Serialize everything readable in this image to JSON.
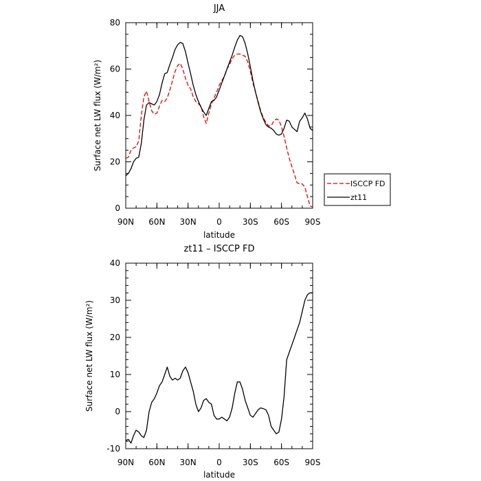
{
  "chart_data": [
    {
      "type": "line",
      "title": "JJA",
      "xlabel": "latitude",
      "ylabel": "Surface net LW flux (W/m²)",
      "xlim": [
        90,
        -90
      ],
      "ylim": [
        0,
        80
      ],
      "xticks": [
        {
          "value": 90,
          "label": "90N"
        },
        {
          "value": 60,
          "label": "60N"
        },
        {
          "value": 30,
          "label": "30N"
        },
        {
          "value": 0,
          "label": "0"
        },
        {
          "value": -30,
          "label": "30S"
        },
        {
          "value": -60,
          "label": "60S"
        },
        {
          "value": -90,
          "label": "90S"
        }
      ],
      "yticks": [
        0,
        20,
        40,
        60,
        80
      ],
      "legend": "outside-right",
      "series": [
        {
          "name": "ISCCP FD",
          "color": "#e00000",
          "dash": "dashed",
          "x": [
            90,
            87.5,
            85,
            82.5,
            80,
            77.5,
            75,
            72.5,
            70,
            67.5,
            65,
            62.5,
            60,
            57.5,
            55,
            52.5,
            50,
            47.5,
            45,
            42.5,
            40,
            37.5,
            35,
            32.5,
            30,
            27.5,
            25,
            22.5,
            20,
            17.5,
            15,
            12.5,
            10,
            7.5,
            5,
            2.5,
            0,
            -2.5,
            -5,
            -7.5,
            -10,
            -12.5,
            -15,
            -17.5,
            -20,
            -22.5,
            -25,
            -27.5,
            -30,
            -32.5,
            -35,
            -37.5,
            -40,
            -42.5,
            -45,
            -47.5,
            -50,
            -52.5,
            -55,
            -57.5,
            -60,
            -62.5,
            -65,
            -67.5,
            -70,
            -72.5,
            -75,
            -77.5,
            -80,
            -82.5,
            -85,
            -87.5,
            -90
          ],
          "y": [
            21.5,
            22.0,
            25.0,
            26.0,
            26.5,
            29.0,
            40.0,
            48.0,
            50.5,
            46.0,
            42.0,
            40.5,
            41.0,
            44.0,
            46.5,
            46.0,
            47.5,
            51.0,
            55.0,
            59.0,
            61.5,
            62.5,
            60.0,
            56.0,
            53.0,
            51.5,
            48.0,
            46.0,
            45.0,
            44.0,
            39.5,
            36.5,
            41.0,
            45.0,
            47.5,
            50.0,
            53.0,
            55.0,
            57.0,
            60.0,
            62.0,
            64.5,
            66.0,
            66.5,
            66.5,
            66.0,
            65.5,
            63.0,
            59.0,
            54.0,
            50.0,
            46.0,
            42.0,
            39.0,
            37.0,
            35.5,
            35.5,
            37.5,
            38.5,
            38.0,
            35.0,
            31.0,
            26.0,
            21.5,
            18.0,
            14.5,
            11.0,
            10.5,
            10.5,
            9.0,
            5.0,
            1.0,
            0.5
          ]
        },
        {
          "name": "zt11",
          "color": "#000000",
          "dash": "solid",
          "x": [
            90,
            87.5,
            85,
            82.5,
            80,
            77.5,
            75,
            72.5,
            70,
            67.5,
            65,
            62.5,
            60,
            57.5,
            55,
            52.5,
            50,
            47.5,
            45,
            42.5,
            40,
            37.5,
            35,
            32.5,
            30,
            27.5,
            25,
            22.5,
            20,
            17.5,
            15,
            12.5,
            10,
            7.5,
            5,
            2.5,
            0,
            -2.5,
            -5,
            -7.5,
            -10,
            -12.5,
            -15,
            -17.5,
            -20,
            -22.5,
            -25,
            -27.5,
            -30,
            -32.5,
            -35,
            -37.5,
            -40,
            -42.5,
            -45,
            -47.5,
            -50,
            -52.5,
            -55,
            -57.5,
            -60,
            -62.5,
            -65,
            -67.5,
            -70,
            -72.5,
            -75,
            -77.5,
            -80,
            -82.5,
            -85,
            -87.5,
            -90
          ],
          "y": [
            14.0,
            15.0,
            17.0,
            20.0,
            21.5,
            22.0,
            28.0,
            38.0,
            44.5,
            45.5,
            45.0,
            44.5,
            46.0,
            49.0,
            54.0,
            58.0,
            58.5,
            62.0,
            65.0,
            68.5,
            70.5,
            71.5,
            71.0,
            67.5,
            62.5,
            58.0,
            53.0,
            49.0,
            46.0,
            43.5,
            41.5,
            40.0,
            43.0,
            46.0,
            46.5,
            48.0,
            51.0,
            54.0,
            57.0,
            60.0,
            63.0,
            66.0,
            69.5,
            72.5,
            74.5,
            74.0,
            71.0,
            66.5,
            61.0,
            55.0,
            50.0,
            45.5,
            41.5,
            38.5,
            36.0,
            35.0,
            34.5,
            33.5,
            32.0,
            31.5,
            32.0,
            34.5,
            38.0,
            37.5,
            35.0,
            34.0,
            33.0,
            37.5,
            39.0,
            41.0,
            38.5,
            34.5,
            33.5
          ]
        }
      ]
    },
    {
      "type": "line",
      "title": "zt11 – ISCCP FD",
      "xlabel": "latitude",
      "ylabel": "Surface net LW flux (W/m²)",
      "xlim": [
        90,
        -90
      ],
      "ylim": [
        -10,
        40
      ],
      "xticks": [
        {
          "value": 90,
          "label": "90N"
        },
        {
          "value": 60,
          "label": "60N"
        },
        {
          "value": 30,
          "label": "30N"
        },
        {
          "value": 0,
          "label": "0"
        },
        {
          "value": -30,
          "label": "30S"
        },
        {
          "value": -60,
          "label": "60S"
        },
        {
          "value": -90,
          "label": "90S"
        }
      ],
      "yticks": [
        -10,
        0,
        10,
        20,
        30,
        40
      ],
      "series": [
        {
          "name": "",
          "color": "#000000",
          "dash": "solid",
          "x": [
            90,
            87.5,
            85,
            82.5,
            80,
            77.5,
            75,
            72.5,
            70,
            67.5,
            65,
            62.5,
            60,
            57.5,
            55,
            52.5,
            50,
            47.5,
            45,
            42.5,
            40,
            37.5,
            35,
            32.5,
            30,
            27.5,
            25,
            22.5,
            20,
            17.5,
            15,
            12.5,
            10,
            7.5,
            5,
            2.5,
            0,
            -2.5,
            -5,
            -7.5,
            -10,
            -12.5,
            -15,
            -17.5,
            -20,
            -22.5,
            -25,
            -27.5,
            -30,
            -32.5,
            -35,
            -37.5,
            -40,
            -42.5,
            -45,
            -47.5,
            -50,
            -52.5,
            -55,
            -57.5,
            -60,
            -62.5,
            -65,
            -67.5,
            -70,
            -72.5,
            -75,
            -77.5,
            -80,
            -82.5,
            -85,
            -87.5,
            -90
          ],
          "y": [
            -7.8,
            -7.5,
            -8.5,
            -6.5,
            -5.0,
            -5.5,
            -6.5,
            -7.0,
            -5.0,
            0.0,
            2.5,
            3.5,
            5.0,
            7.0,
            8.0,
            10.0,
            12.0,
            9.5,
            8.5,
            9.0,
            8.5,
            9.0,
            11.0,
            12.0,
            10.5,
            8.0,
            5.5,
            2.0,
            0.0,
            1.0,
            3.0,
            3.5,
            2.5,
            2.0,
            -1.0,
            -2.0,
            -2.0,
            -1.5,
            -2.0,
            -2.5,
            -1.5,
            1.0,
            5.0,
            8.0,
            8.0,
            6.0,
            3.0,
            1.0,
            -1.0,
            -1.5,
            -0.5,
            0.5,
            1.0,
            0.8,
            0.5,
            -1.0,
            -4.0,
            -5.0,
            -6.0,
            -5.5,
            -2.0,
            4.0,
            14.0,
            16.0,
            18.0,
            20.0,
            22.0,
            24.0,
            27.0,
            30.0,
            31.5,
            32.0,
            32.0
          ]
        }
      ]
    }
  ]
}
